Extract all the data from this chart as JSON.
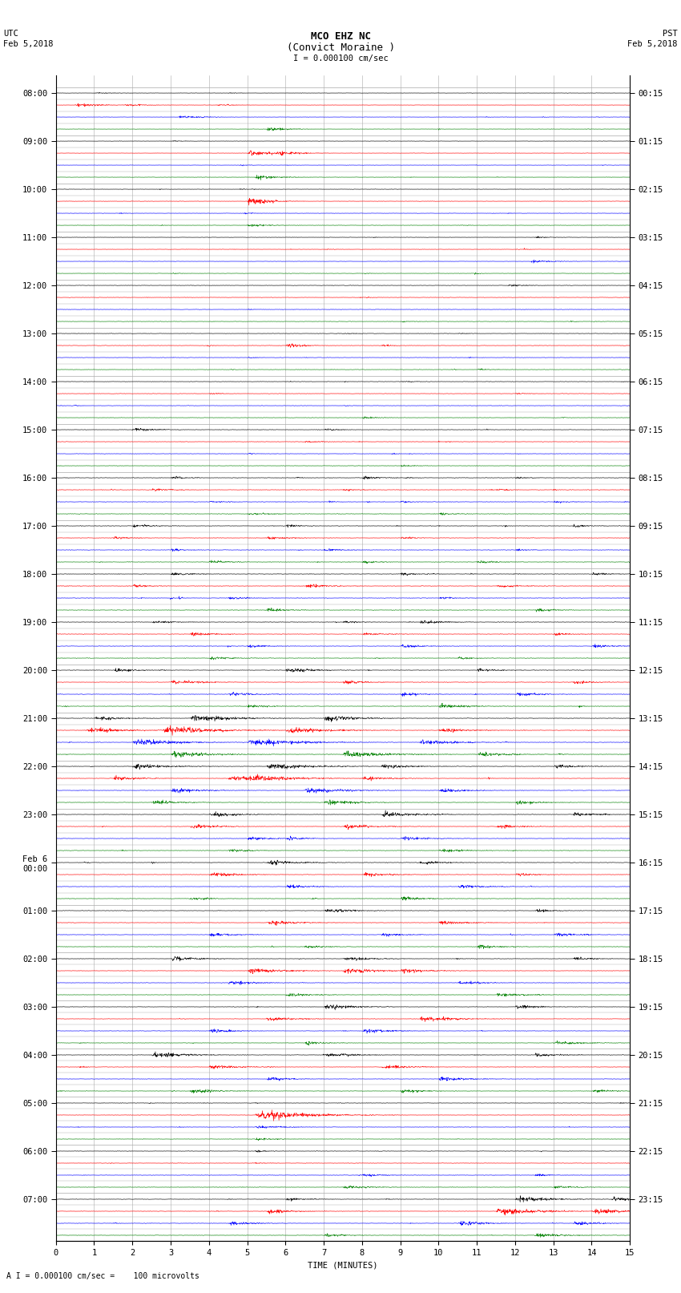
{
  "title_line1": "MCO EHZ NC",
  "title_line2": "(Convict Moraine )",
  "scale_text": "I = 0.000100 cm/sec",
  "footer_text": "A I = 0.000100 cm/sec =    100 microvolts",
  "xlabel": "TIME (MINUTES)",
  "utc_times": [
    "08:00",
    "",
    "",
    "",
    "09:00",
    "",
    "",
    "",
    "10:00",
    "",
    "",
    "",
    "11:00",
    "",
    "",
    "",
    "12:00",
    "",
    "",
    "",
    "13:00",
    "",
    "",
    "",
    "14:00",
    "",
    "",
    "",
    "15:00",
    "",
    "",
    "",
    "16:00",
    "",
    "",
    "",
    "17:00",
    "",
    "",
    "",
    "18:00",
    "",
    "",
    "",
    "19:00",
    "",
    "",
    "",
    "20:00",
    "",
    "",
    "",
    "21:00",
    "",
    "",
    "",
    "22:00",
    "",
    "",
    "",
    "23:00",
    "",
    "",
    "",
    "Feb 6\n00:00",
    "",
    "",
    "",
    "01:00",
    "",
    "",
    "",
    "02:00",
    "",
    "",
    "",
    "03:00",
    "",
    "",
    "",
    "04:00",
    "",
    "",
    "",
    "05:00",
    "",
    "",
    "",
    "06:00",
    "",
    "",
    "",
    "07:00",
    "",
    "",
    ""
  ],
  "pst_times": [
    "00:15",
    "",
    "",
    "",
    "01:15",
    "",
    "",
    "",
    "02:15",
    "",
    "",
    "",
    "03:15",
    "",
    "",
    "",
    "04:15",
    "",
    "",
    "",
    "05:15",
    "",
    "",
    "",
    "06:15",
    "",
    "",
    "",
    "07:15",
    "",
    "",
    "",
    "08:15",
    "",
    "",
    "",
    "09:15",
    "",
    "",
    "",
    "10:15",
    "",
    "",
    "",
    "11:15",
    "",
    "",
    "",
    "12:15",
    "",
    "",
    "",
    "13:15",
    "",
    "",
    "",
    "14:15",
    "",
    "",
    "",
    "15:15",
    "",
    "",
    "",
    "16:15",
    "",
    "",
    "",
    "17:15",
    "",
    "",
    "",
    "18:15",
    "",
    "",
    "",
    "19:15",
    "",
    "",
    "",
    "20:15",
    "",
    "",
    "",
    "21:15",
    "",
    "",
    "",
    "22:15",
    "",
    "",
    "",
    "23:15",
    "",
    "",
    ""
  ],
  "trace_colors": [
    "black",
    "red",
    "blue",
    "green"
  ],
  "n_traces": 96,
  "n_points": 1800,
  "x_min": 0,
  "x_max": 15,
  "background_color": "white",
  "grid_color": "#aaaaaa",
  "title_fontsize": 9,
  "label_fontsize": 7.5,
  "tick_fontsize": 7.5
}
